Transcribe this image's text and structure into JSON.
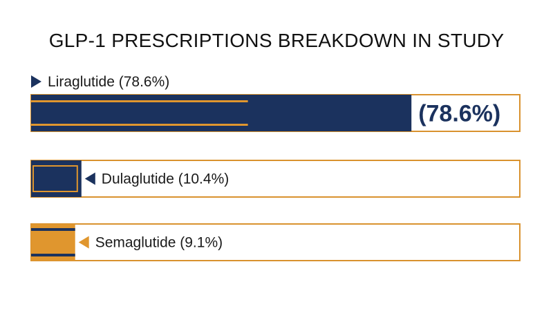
{
  "chart_data": {
    "type": "bar",
    "title": "GLP-1 PRESCRIPTIONS BREAKDOWN IN STUDY",
    "xlabel": "",
    "ylabel": "",
    "xlim": [
      0,
      100
    ],
    "grid": false,
    "categories": [
      "Liraglutide",
      "Dulaglutide",
      "Semaglutide"
    ],
    "values": [
      78.6,
      10.4,
      9.1
    ],
    "labels": [
      "Liraglutide (78.6%)",
      "Dulaglutide (10.4%)",
      "Semaglutide (9.1%)"
    ],
    "highlight_value_label": "(78.6%)",
    "colors": {
      "navy": "#1b325e",
      "gold": "#e0962e",
      "outline": "#d9922e",
      "background": "#ffffff",
      "text": "#1a1a1a"
    },
    "bar_colors": [
      "#1b325e",
      "#1b325e",
      "#e0962e"
    ],
    "stripe_colors": [
      "#e0962e",
      "#e0962e",
      "#1b325e"
    ]
  }
}
